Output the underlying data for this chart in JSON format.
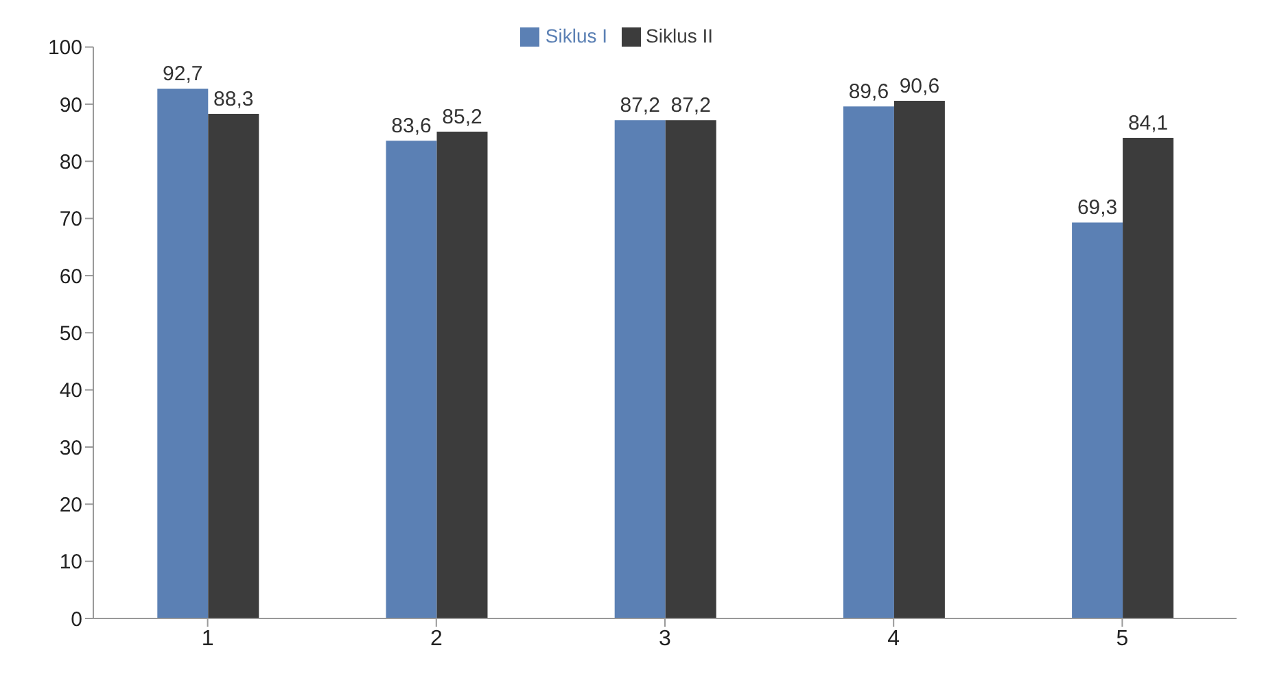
{
  "chart_data": {
    "type": "bar",
    "categories": [
      "1",
      "2",
      "3",
      "4",
      "5"
    ],
    "series": [
      {
        "name": "Siklus I",
        "color": "#5b80b4",
        "values": [
          92.7,
          83.6,
          87.2,
          89.6,
          69.3
        ],
        "value_labels": [
          "92,7",
          "83,6",
          "87,2",
          "89,6",
          "69,3"
        ]
      },
      {
        "name": "Siklus II",
        "color": "#3c3c3c",
        "values": [
          88.3,
          85.2,
          87.2,
          90.6,
          84.1
        ],
        "value_labels": [
          "88,3",
          "85,2",
          "87,2",
          "90,6",
          "84,1"
        ]
      }
    ],
    "ylim": [
      0,
      100
    ],
    "yticks": [
      0,
      10,
      20,
      30,
      40,
      50,
      60,
      70,
      80,
      90,
      100
    ],
    "grid": false,
    "legend": "top"
  }
}
